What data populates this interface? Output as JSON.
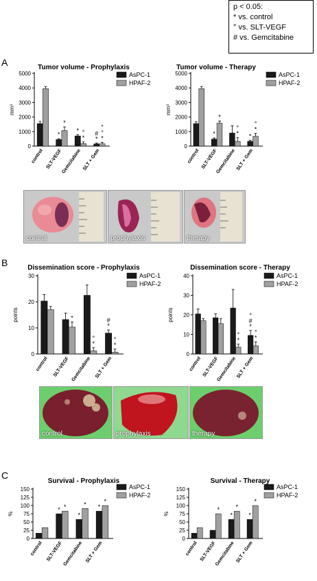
{
  "significance_legend": {
    "title": "p < 0.05:",
    "lines": [
      "*  vs. control",
      "°  vs. SLT-VEGF",
      "#  vs. Gemcitabine"
    ]
  },
  "panel_labels": [
    "A",
    "B",
    "C"
  ],
  "photos": {
    "tumor": [
      "control",
      "prophylaxis",
      "therapy"
    ],
    "liver": [
      "control",
      "prophylaxis",
      "therapy"
    ]
  },
  "colors": {
    "aspc1": "#1a1a1a",
    "hpaf2": "#a0a0a0",
    "tumor_bg": "#c8c8c8",
    "liver_bg": "#6fcf6f"
  },
  "chart_data": [
    {
      "id": "tv-pro",
      "type": "bar",
      "title": "Tumor volume - Prophylaxis",
      "xlabel": "",
      "ylabel": "mm³",
      "ylim": [
        0,
        5000
      ],
      "yticks": [
        0,
        1000,
        2000,
        3000,
        4000,
        5000
      ],
      "categories": [
        "control",
        "SLT-VEGF",
        "Gemcitabine",
        "SLT + Gem"
      ],
      "series": [
        {
          "name": "AsPC-1",
          "values": [
            1550,
            450,
            700,
            150
          ],
          "errors": [
            150,
            60,
            80,
            60
          ],
          "sig": [
            "",
            "*",
            "*",
            "#\n*"
          ]
        },
        {
          "name": "HPAF-2",
          "values": [
            3950,
            1070,
            170,
            160
          ],
          "errors": [
            150,
            250,
            120,
            100
          ],
          "sig": [
            "",
            "*",
            "°\n*",
            "°\n°\n*"
          ]
        }
      ]
    },
    {
      "id": "tv-ther",
      "type": "bar",
      "title": "Tumor volume - Therapy",
      "xlabel": "",
      "ylabel": "mm³",
      "ylim": [
        0,
        5000
      ],
      "yticks": [
        0,
        1000,
        2000,
        3000,
        4000,
        5000
      ],
      "categories": [
        "control",
        "SLT-VEGF",
        "Gemcitabine",
        "SLT + Gem"
      ],
      "series": [
        {
          "name": "AsPC-1",
          "values": [
            1550,
            480,
            900,
            330
          ],
          "errors": [
            120,
            80,
            500,
            80
          ],
          "sig": [
            "",
            "*",
            "",
            "*"
          ]
        },
        {
          "name": "HPAF-2",
          "values": [
            3950,
            1580,
            330,
            680
          ],
          "errors": [
            150,
            150,
            250,
            200
          ],
          "sig": [
            "",
            "*",
            "°\n*",
            "°\n*"
          ]
        }
      ]
    },
    {
      "id": "ds-pro",
      "type": "bar",
      "title": "Dissemination score - Prophylaxis",
      "xlabel": "",
      "ylabel": "points",
      "ylim": [
        0,
        30
      ],
      "yticks": [
        0,
        10,
        20,
        30
      ],
      "categories": [
        "control",
        "SLT-VEGF",
        "Gemcitabine",
        "SLT + Gem"
      ],
      "series": [
        {
          "name": "AsPC-1",
          "values": [
            20.3,
            13.2,
            22.5,
            8.0
          ],
          "errors": [
            2.5,
            2.5,
            4.0,
            1.2
          ],
          "sig": [
            "",
            "",
            "",
            "#\n*"
          ]
        },
        {
          "name": "HPAF-2",
          "values": [
            17.0,
            10.3,
            1.2,
            0.7
          ],
          "errors": [
            1.2,
            2.0,
            1.2,
            1.2
          ],
          "sig": [
            "",
            "*",
            "°\n*",
            "°\n*"
          ]
        }
      ]
    },
    {
      "id": "ds-ther",
      "type": "bar",
      "title": "Dissemination score - Therapy",
      "xlabel": "",
      "ylabel": "points",
      "ylim": [
        0,
        40
      ],
      "yticks": [
        0,
        10,
        20,
        30,
        40
      ],
      "categories": [
        "control",
        "SLT-VEGF",
        "Gemcitabine",
        "SLT + Gem"
      ],
      "series": [
        {
          "name": "AsPC-1",
          "values": [
            20.5,
            18.5,
            23.5,
            9.5
          ],
          "errors": [
            2.5,
            2.0,
            9.5,
            2.5
          ],
          "sig": [
            "",
            "",
            "",
            "°\n#\n*"
          ]
        },
        {
          "name": "HPAF-2",
          "values": [
            17.0,
            15.5,
            3.5,
            4.2
          ],
          "errors": [
            1.0,
            2.5,
            1.5,
            2.0
          ],
          "sig": [
            "",
            "",
            "°\n*",
            "°\n*"
          ]
        }
      ]
    },
    {
      "id": "sv-pro",
      "type": "bar",
      "title": "Survival - Prophylaxis",
      "xlabel": "",
      "ylabel": "%",
      "ylim": [
        0,
        150
      ],
      "yticks": [
        0,
        25,
        50,
        75,
        100,
        125,
        150
      ],
      "categories": [
        "control",
        "SLT-VEGF",
        "Gemcitabine",
        "SLT + Gem"
      ],
      "series": [
        {
          "name": "AsPC-1",
          "values": [
            16,
            75,
            58,
            83
          ],
          "errors": [
            0,
            0,
            0,
            0
          ],
          "sig": [
            "",
            "*",
            "*",
            "*"
          ]
        },
        {
          "name": "HPAF-2",
          "values": [
            33,
            83,
            91,
            100
          ],
          "errors": [
            0,
            0,
            0,
            0
          ],
          "sig": [
            "",
            "*",
            "*",
            "*"
          ]
        }
      ]
    },
    {
      "id": "sv-ther",
      "type": "bar",
      "title": "Survival - Therapy",
      "xlabel": "",
      "ylabel": "%",
      "ylim": [
        0,
        150
      ],
      "yticks": [
        0,
        25,
        50,
        75,
        100,
        125,
        150
      ],
      "categories": [
        "control",
        "SLT-VEGF",
        "Gemcitabine",
        "SLT + Gem"
      ],
      "series": [
        {
          "name": "AsPC-1",
          "values": [
            16,
            25,
            58,
            58
          ],
          "errors": [
            0,
            0,
            0,
            0
          ],
          "sig": [
            "",
            "",
            "*",
            "*"
          ]
        },
        {
          "name": "HPAF-2",
          "values": [
            33,
            75,
            83,
            100
          ],
          "errors": [
            0,
            0,
            0,
            0
          ],
          "sig": [
            "",
            "*",
            "*",
            "*"
          ]
        }
      ]
    }
  ]
}
